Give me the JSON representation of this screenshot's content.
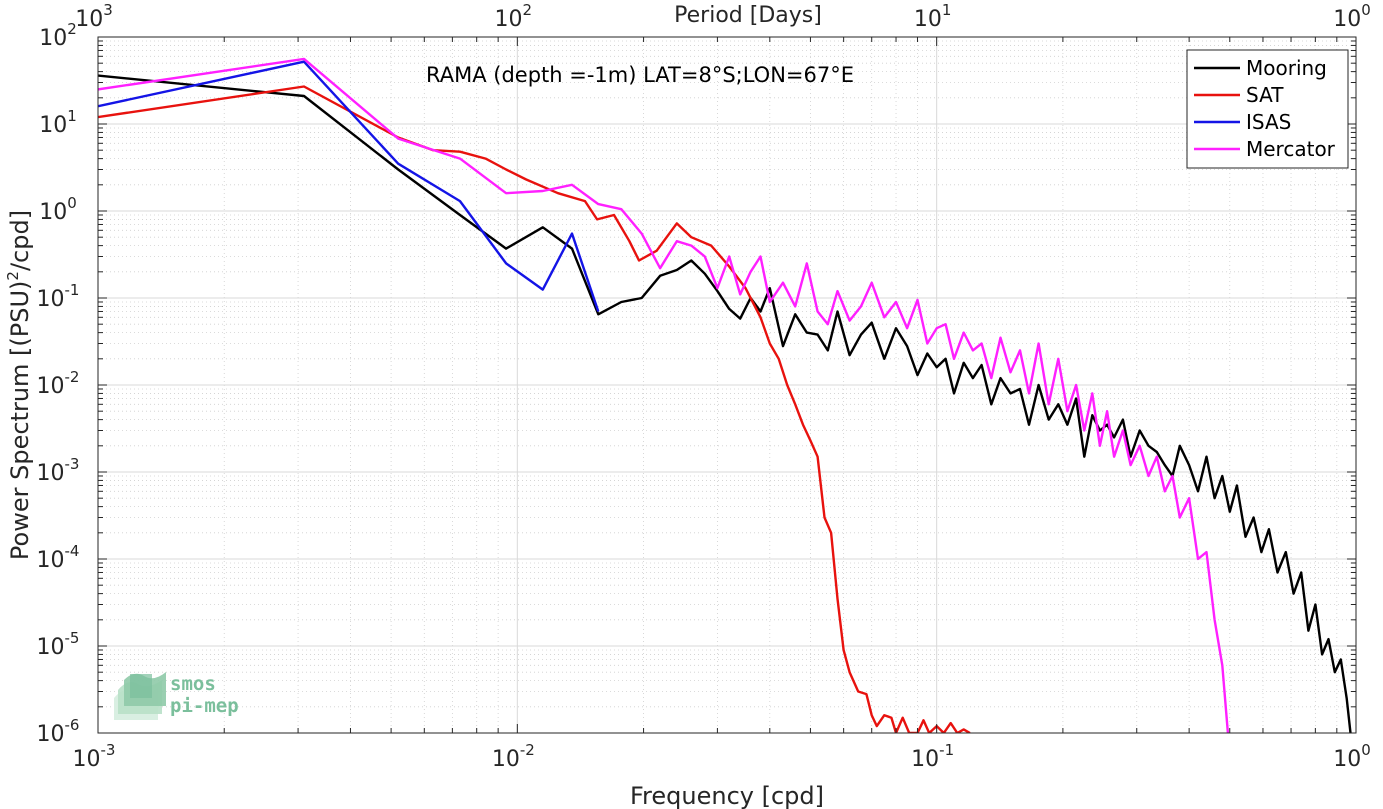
{
  "chart_data": {
    "type": "line",
    "title": "RAMA (depth =-1m) LAT=8°S;LON=67°E",
    "xlabel": "Frequency [cpd]",
    "ylabel": "Power Spectrum [(PSU)²/cpd]",
    "ylabel_parts": {
      "main": "Power Spectrum [(PSU)",
      "sup": "2",
      "tail": "/cpd]"
    },
    "top_xlabel": "Period [Days]",
    "x_scale": "log",
    "y_scale": "log",
    "xlim": [
      0.001,
      1
    ],
    "ylim": [
      1e-06,
      100
    ],
    "grid": true,
    "legend_position": "top-right",
    "x_ticks": [
      {
        "value": 0.001,
        "base": "10",
        "exp": "-3"
      },
      {
        "value": 0.01,
        "base": "10",
        "exp": "-2"
      },
      {
        "value": 0.1,
        "base": "10",
        "exp": "-1"
      },
      {
        "value": 1,
        "base": "10",
        "exp": "0"
      }
    ],
    "top_ticks": [
      {
        "frequency": 0.001,
        "base": "10",
        "exp": "3"
      },
      {
        "frequency": 0.01,
        "base": "10",
        "exp": "2"
      },
      {
        "frequency": 0.1,
        "base": "10",
        "exp": "1"
      },
      {
        "frequency": 1,
        "base": "10",
        "exp": "0"
      }
    ],
    "y_ticks": [
      {
        "value": 1e-06,
        "base": "10",
        "exp": "-6"
      },
      {
        "value": 1e-05,
        "base": "10",
        "exp": "-5"
      },
      {
        "value": 0.0001,
        "base": "10",
        "exp": "-4"
      },
      {
        "value": 0.001,
        "base": "10",
        "exp": "-3"
      },
      {
        "value": 0.01,
        "base": "10",
        "exp": "-2"
      },
      {
        "value": 0.1,
        "base": "10",
        "exp": "-1"
      },
      {
        "value": 1,
        "base": "10",
        "exp": "0"
      },
      {
        "value": 10,
        "base": "10",
        "exp": "1"
      },
      {
        "value": 100,
        "base": "10",
        "exp": "2"
      }
    ],
    "series": [
      {
        "name": "Mooring",
        "color": "#000000",
        "x": [
          0.001,
          0.0031,
          0.0052,
          0.0073,
          0.0094,
          0.0115,
          0.0135,
          0.0156,
          0.0177,
          0.0198,
          0.0219,
          0.024,
          0.026,
          0.028,
          0.03,
          0.032,
          0.034,
          0.036,
          0.038,
          0.04,
          0.043,
          0.046,
          0.049,
          0.052,
          0.055,
          0.058,
          0.062,
          0.066,
          0.07,
          0.075,
          0.08,
          0.085,
          0.09,
          0.095,
          0.1,
          0.105,
          0.11,
          0.116,
          0.122,
          0.128,
          0.135,
          0.142,
          0.15,
          0.158,
          0.166,
          0.175,
          0.185,
          0.195,
          0.205,
          0.215,
          0.225,
          0.235,
          0.245,
          0.255,
          0.265,
          0.278,
          0.29,
          0.305,
          0.32,
          0.335,
          0.35,
          0.365,
          0.38,
          0.4,
          0.42,
          0.44,
          0.46,
          0.48,
          0.5,
          0.52,
          0.545,
          0.57,
          0.595,
          0.62,
          0.65,
          0.68,
          0.71,
          0.74,
          0.77,
          0.8,
          0.83,
          0.86,
          0.89,
          0.92,
          0.95,
          0.97
        ],
        "values": [
          36,
          21,
          3.0,
          0.9,
          0.37,
          0.65,
          0.37,
          0.065,
          0.09,
          0.1,
          0.18,
          0.21,
          0.27,
          0.19,
          0.12,
          0.075,
          0.058,
          0.1,
          0.07,
          0.13,
          0.028,
          0.065,
          0.04,
          0.038,
          0.025,
          0.07,
          0.022,
          0.038,
          0.052,
          0.02,
          0.045,
          0.028,
          0.013,
          0.023,
          0.016,
          0.02,
          0.008,
          0.018,
          0.012,
          0.017,
          0.006,
          0.012,
          0.008,
          0.009,
          0.0035,
          0.01,
          0.004,
          0.006,
          0.0035,
          0.007,
          0.0015,
          0.0045,
          0.003,
          0.0035,
          0.0025,
          0.004,
          0.0015,
          0.003,
          0.002,
          0.0017,
          0.0012,
          0.0009,
          0.002,
          0.0012,
          0.0006,
          0.0015,
          0.0005,
          0.0009,
          0.00035,
          0.0007,
          0.00018,
          0.0003,
          0.00012,
          0.00022,
          7e-05,
          0.00012,
          4e-05,
          7e-05,
          1.5e-05,
          3e-05,
          8e-06,
          1.2e-05,
          5e-06,
          7e-06,
          2.5e-06,
          1e-06
        ]
      },
      {
        "name": "SAT",
        "color": "#e8120e",
        "x": [
          0.001,
          0.0031,
          0.0052,
          0.0063,
          0.0073,
          0.0084,
          0.0094,
          0.0105,
          0.0125,
          0.0145,
          0.0155,
          0.017,
          0.0185,
          0.0195,
          0.0215,
          0.024,
          0.026,
          0.029,
          0.032,
          0.035,
          0.038,
          0.04,
          0.042,
          0.044,
          0.046,
          0.048,
          0.05,
          0.052,
          0.054,
          0.056,
          0.058,
          0.06,
          0.062,
          0.065,
          0.068,
          0.07,
          0.072,
          0.075,
          0.078,
          0.08,
          0.083,
          0.086,
          0.09,
          0.093,
          0.096,
          0.1,
          0.104,
          0.108,
          0.112,
          0.116,
          0.12
        ],
        "values": [
          12,
          27,
          7,
          5,
          4.8,
          4.0,
          3.0,
          2.3,
          1.6,
          1.3,
          0.8,
          0.9,
          0.45,
          0.27,
          0.35,
          0.72,
          0.5,
          0.4,
          0.23,
          0.13,
          0.06,
          0.03,
          0.02,
          0.01,
          0.006,
          0.0035,
          0.0023,
          0.0015,
          0.0003,
          0.0002,
          3.5e-05,
          9e-06,
          5e-06,
          3e-06,
          2.8e-06,
          1.6e-06,
          1.2e-06,
          1.6e-06,
          1.5e-06,
          9e-07,
          1.5e-06,
          6e-07,
          1e-06,
          1.4e-06,
          8e-07,
          1.2e-06,
          9e-07,
          1.3e-06,
          8e-07,
          1.1e-06,
          9e-07
        ]
      },
      {
        "name": "ISAS",
        "color": "#1414e6",
        "x": [
          0.001,
          0.0031,
          0.0052,
          0.0073,
          0.0094,
          0.0115,
          0.0135,
          0.0156
        ],
        "values": [
          16,
          52,
          3.5,
          1.3,
          0.25,
          0.125,
          0.55,
          0.07
        ]
      },
      {
        "name": "Mercator",
        "color": "#ff20ff",
        "x": [
          0.001,
          0.0031,
          0.0052,
          0.0073,
          0.0094,
          0.0115,
          0.0135,
          0.0156,
          0.0177,
          0.0198,
          0.0219,
          0.024,
          0.026,
          0.028,
          0.03,
          0.032,
          0.034,
          0.036,
          0.038,
          0.04,
          0.043,
          0.046,
          0.049,
          0.052,
          0.055,
          0.058,
          0.062,
          0.066,
          0.07,
          0.075,
          0.08,
          0.085,
          0.09,
          0.095,
          0.1,
          0.105,
          0.11,
          0.116,
          0.122,
          0.128,
          0.135,
          0.142,
          0.15,
          0.158,
          0.166,
          0.175,
          0.185,
          0.195,
          0.205,
          0.215,
          0.225,
          0.235,
          0.245,
          0.255,
          0.265,
          0.278,
          0.29,
          0.305,
          0.32,
          0.335,
          0.35,
          0.365,
          0.38,
          0.4,
          0.42,
          0.44,
          0.46,
          0.48,
          0.495
        ],
        "values": [
          25,
          56,
          6.8,
          4.0,
          1.6,
          1.7,
          2.0,
          1.2,
          1.05,
          0.55,
          0.22,
          0.45,
          0.4,
          0.3,
          0.13,
          0.3,
          0.11,
          0.2,
          0.3,
          0.09,
          0.15,
          0.08,
          0.25,
          0.07,
          0.05,
          0.12,
          0.055,
          0.08,
          0.15,
          0.06,
          0.09,
          0.045,
          0.095,
          0.03,
          0.045,
          0.05,
          0.02,
          0.04,
          0.025,
          0.03,
          0.012,
          0.035,
          0.014,
          0.025,
          0.008,
          0.03,
          0.006,
          0.02,
          0.005,
          0.01,
          0.003,
          0.008,
          0.002,
          0.005,
          0.0015,
          0.003,
          0.0012,
          0.002,
          0.0009,
          0.0015,
          0.0006,
          0.0009,
          0.0003,
          0.0005,
          0.0001,
          0.00012,
          2e-05,
          6e-06,
          1e-06
        ]
      }
    ]
  },
  "logo": {
    "line1": "smos",
    "line2": "pi-mep"
  }
}
